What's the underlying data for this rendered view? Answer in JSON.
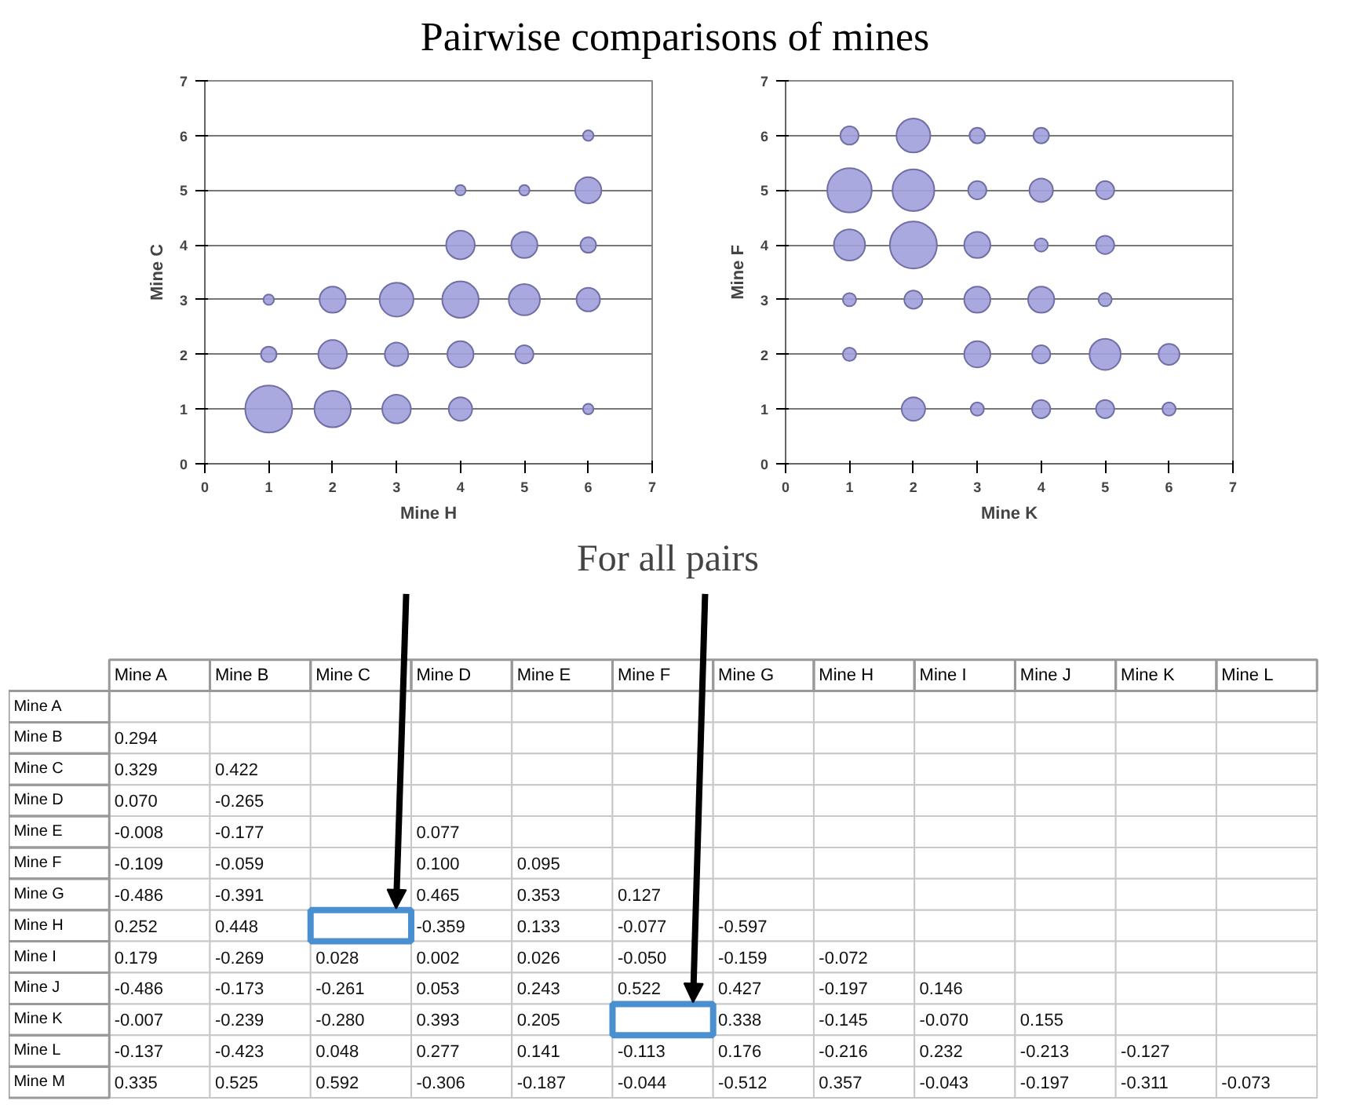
{
  "chart_data": [
    {
      "type": "bubble",
      "title": "Pairwise comparisons of mines",
      "xlabel": "Mine H",
      "ylabel": "Mine C",
      "color": "#a09fdc",
      "xlim": [
        0,
        7
      ],
      "ylim": [
        0,
        7
      ],
      "xticks": [
        0,
        1,
        2,
        3,
        4,
        5,
        6,
        7
      ],
      "yticks": [
        0,
        1,
        2,
        3,
        4,
        5,
        6,
        7
      ],
      "grid": "y",
      "x": [
        1,
        2,
        3,
        4,
        6,
        1,
        2,
        3,
        4,
        5,
        1,
        2,
        3,
        4,
        5,
        6,
        4,
        5,
        6,
        4,
        5,
        6,
        6
      ],
      "values": [
        1,
        1,
        1,
        1,
        1,
        2,
        2,
        2,
        2,
        2,
        3,
        3,
        3,
        3,
        3,
        3,
        4,
        4,
        4,
        5,
        5,
        5,
        6
      ],
      "sizes": [
        1,
        0.6,
        0.37,
        0.25,
        0.05,
        0.11,
        0.37,
        0.25,
        0.31,
        0.15,
        0.05,
        0.31,
        0.52,
        0.6,
        0.44,
        0.25,
        0.37,
        0.31,
        0.11,
        0.05,
        0.05,
        0.31,
        0.05
      ]
    },
    {
      "type": "bubble",
      "xlabel": "Mine K",
      "ylabel": "Mine F",
      "color": "#a09fdc",
      "xlim": [
        0,
        7
      ],
      "ylim": [
        0,
        7
      ],
      "xticks": [
        0,
        1,
        2,
        3,
        4,
        5,
        6,
        7
      ],
      "yticks": [
        0,
        1,
        2,
        3,
        4,
        5,
        6,
        7
      ],
      "grid": "y",
      "x": [
        1,
        2,
        3,
        4,
        1,
        2,
        3,
        4,
        5,
        1,
        2,
        3,
        4,
        5,
        1,
        2,
        3,
        4,
        5,
        1,
        3,
        4,
        5,
        6,
        2,
        3,
        4,
        5,
        6
      ],
      "values": [
        6,
        6,
        6,
        6,
        5,
        5,
        5,
        5,
        5,
        4,
        4,
        4,
        4,
        4,
        3,
        3,
        3,
        3,
        3,
        2,
        2,
        2,
        2,
        2,
        1,
        1,
        1,
        1,
        1
      ],
      "sizes": [
        0.15,
        0.52,
        0.11,
        0.11,
        0.89,
        0.79,
        0.15,
        0.25,
        0.15,
        0.44,
        1,
        0.31,
        0.08,
        0.15,
        0.08,
        0.15,
        0.31,
        0.31,
        0.08,
        0.08,
        0.31,
        0.15,
        0.44,
        0.2,
        0.25,
        0.08,
        0.15,
        0.15,
        0.08
      ]
    },
    {
      "type": "heatmap",
      "title": "For all pairs",
      "categories": [
        "Mine A",
        "Mine B",
        "Mine C",
        "Mine D",
        "Mine E",
        "Mine F",
        "Mine G",
        "Mine H",
        "Mine I",
        "Mine J",
        "Mine K",
        "Mine L"
      ],
      "y_categories": [
        "Mine A",
        "Mine B",
        "Mine C",
        "Mine D",
        "Mine E",
        "Mine F",
        "Mine G",
        "Mine H",
        "Mine I",
        "Mine J",
        "Mine K",
        "Mine L",
        "Mine M"
      ],
      "cells": [
        [
          null,
          null,
          null,
          null,
          null,
          null,
          null,
          null,
          null,
          null,
          null,
          null
        ],
        [
          0.294,
          null,
          null,
          null,
          null,
          null,
          null,
          null,
          null,
          null,
          null,
          null
        ],
        [
          0.329,
          0.422,
          null,
          null,
          null,
          null,
          null,
          null,
          null,
          null,
          null,
          null
        ],
        [
          0.07,
          -0.265,
          null,
          null,
          null,
          null,
          null,
          null,
          null,
          null,
          null,
          null
        ],
        [
          -0.008,
          -0.177,
          null,
          0.077,
          null,
          null,
          null,
          null,
          null,
          null,
          null,
          null
        ],
        [
          -0.109,
          -0.059,
          null,
          0.1,
          0.095,
          null,
          null,
          null,
          null,
          null,
          null,
          null
        ],
        [
          -0.486,
          -0.391,
          null,
          0.465,
          0.353,
          0.127,
          null,
          null,
          null,
          null,
          null,
          null
        ],
        [
          0.252,
          0.448,
          null,
          -0.359,
          0.133,
          -0.077,
          -0.597,
          null,
          null,
          null,
          null,
          null
        ],
        [
          0.179,
          -0.269,
          0.028,
          0.002,
          0.026,
          -0.05,
          -0.159,
          -0.072,
          null,
          null,
          null,
          null
        ],
        [
          -0.486,
          -0.173,
          -0.261,
          0.053,
          0.243,
          0.522,
          0.427,
          -0.197,
          0.146,
          null,
          null,
          null
        ],
        [
          -0.007,
          -0.239,
          -0.28,
          0.393,
          0.205,
          null,
          0.338,
          -0.145,
          -0.07,
          0.155,
          null,
          null
        ],
        [
          -0.137,
          -0.423,
          0.048,
          0.277,
          0.141,
          -0.113,
          0.176,
          -0.216,
          0.232,
          -0.213,
          -0.127,
          null
        ],
        [
          0.335,
          0.525,
          0.592,
          -0.306,
          -0.187,
          -0.044,
          -0.512,
          0.357,
          -0.043,
          -0.197,
          -0.311,
          -0.073
        ]
      ],
      "cell_labels": [
        [
          null,
          null,
          null,
          null,
          null,
          null,
          null,
          null,
          null,
          null,
          null,
          null
        ],
        [
          "0.294",
          null,
          null,
          null,
          null,
          null,
          null,
          null,
          null,
          null,
          null,
          null
        ],
        [
          "0.329",
          "0.422",
          null,
          null,
          null,
          null,
          null,
          null,
          null,
          null,
          null,
          null
        ],
        [
          "0.070",
          "-0.265",
          null,
          null,
          null,
          null,
          null,
          null,
          null,
          null,
          null,
          null
        ],
        [
          "-0.008",
          "-0.177",
          null,
          "0.077",
          null,
          null,
          null,
          null,
          null,
          null,
          null,
          null
        ],
        [
          "-0.109",
          "-0.059",
          null,
          "0.100",
          "0.095",
          null,
          null,
          null,
          null,
          null,
          null,
          null
        ],
        [
          "-0.486",
          "-0.391",
          null,
          "0.465",
          "0.353",
          "0.127",
          null,
          null,
          null,
          null,
          null,
          null
        ],
        [
          "0.252",
          "0.448",
          null,
          "-0.359",
          "0.133",
          "-0.077",
          "-0.597",
          null,
          null,
          null,
          null,
          null
        ],
        [
          "0.179",
          "-0.269",
          "0.028",
          "0.002",
          "0.026",
          "-0.050",
          "-0.159",
          "-0.072",
          null,
          null,
          null,
          null
        ],
        [
          "-0.486",
          "-0.173",
          "-0.261",
          "0.053",
          "0.243",
          "0.522",
          "0.427",
          "-0.197",
          "0.146",
          null,
          null,
          null
        ],
        [
          "-0.007",
          "-0.239",
          "-0.280",
          "0.393",
          "0.205",
          null,
          "0.338",
          "-0.145",
          "-0.070",
          "0.155",
          null,
          null
        ],
        [
          "-0.137",
          "-0.423",
          "0.048",
          "0.277",
          "0.141",
          "-0.113",
          "0.176",
          "-0.216",
          "0.232",
          "-0.213",
          "-0.127",
          null
        ],
        [
          "0.335",
          "0.525",
          "0.592",
          "-0.306",
          "-0.187",
          "-0.044",
          "-0.512",
          "0.357",
          "-0.043",
          "-0.197",
          "-0.311",
          "-0.073"
        ]
      ]
    }
  ]
}
